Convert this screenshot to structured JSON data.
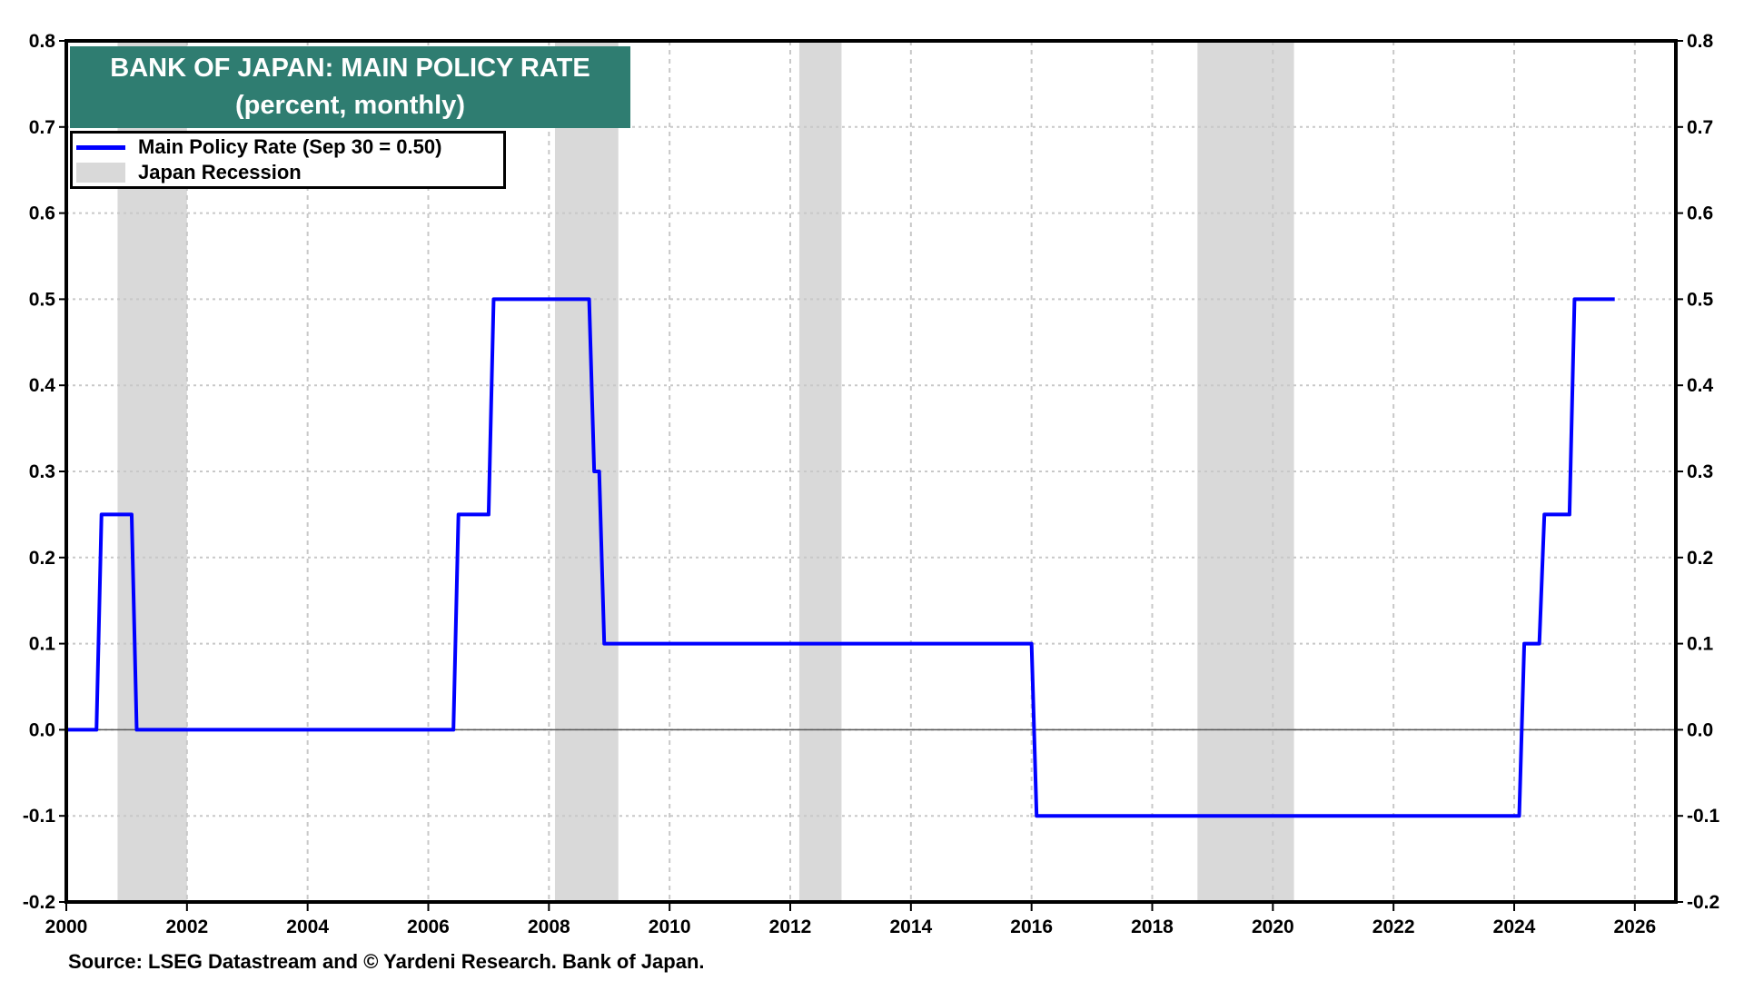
{
  "chart_data": {
    "type": "line",
    "title": "BANK OF JAPAN: MAIN POLICY RATE",
    "subtitle": "(percent, monthly)",
    "xlabel": "",
    "ylabel": "",
    "xlim": [
      2000,
      2026.68
    ],
    "ylim": [
      -0.2,
      0.8
    ],
    "grid": true,
    "legend_position": "top-left",
    "x_ticks": [
      "2000",
      "2002",
      "2004",
      "2006",
      "2008",
      "2010",
      "2012",
      "2014",
      "2016",
      "2018",
      "2020",
      "2022",
      "2024",
      "2026"
    ],
    "y_ticks": [
      "0.8",
      "0.7",
      "0.6",
      "0.5",
      "0.4",
      "0.3",
      "0.2",
      "0.1",
      "0.0",
      "-0.1",
      "-0.2"
    ],
    "series": [
      {
        "name": "Main Policy Rate (Sep 30 = 0.50)",
        "color": "#0000ff",
        "steps": [
          {
            "date": "2000-01",
            "value": 0.0
          },
          {
            "date": "2000-08",
            "value": 0.25
          },
          {
            "date": "2001-03",
            "value": 0.0
          },
          {
            "date": "2006-07",
            "value": 0.25
          },
          {
            "date": "2007-02",
            "value": 0.5
          },
          {
            "date": "2008-10",
            "value": 0.3
          },
          {
            "date": "2008-12",
            "value": 0.1
          },
          {
            "date": "2016-02",
            "value": -0.1
          },
          {
            "date": "2024-03",
            "value": 0.1
          },
          {
            "date": "2024-07",
            "value": 0.25
          },
          {
            "date": "2025-01",
            "value": 0.5
          }
        ],
        "end": "2025-09"
      }
    ],
    "recessions": {
      "name": "Japan Recession",
      "color": "#d9d9d9",
      "periods": [
        [
          2000.85,
          2002.0
        ],
        [
          2008.1,
          2009.15
        ],
        [
          2012.15,
          2012.85
        ],
        [
          2018.75,
          2020.35
        ]
      ]
    },
    "source": "Source: LSEG Datastream and © Yardeni Research. Bank of Japan."
  }
}
